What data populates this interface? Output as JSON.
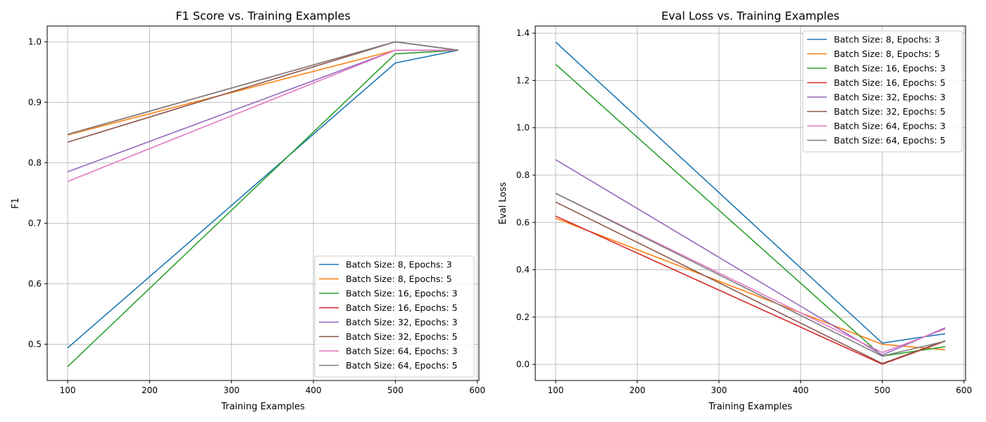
{
  "chart_data": [
    {
      "type": "line",
      "title": "F1 Score vs. Training Examples",
      "xlabel": "Training Examples",
      "ylabel": "F1",
      "xlim": [
        75,
        602
      ],
      "ylim": [
        0.44,
        1.026
      ],
      "xticks": [
        100,
        200,
        300,
        400,
        500,
        600
      ],
      "xtick_labels": [
        "100",
        "200",
        "300",
        "400",
        "500",
        "600"
      ],
      "yticks": [
        0.5,
        0.6,
        0.7,
        0.8,
        0.9,
        1.0
      ],
      "ytick_labels": [
        "0.5",
        "0.6",
        "0.7",
        "0.8",
        "0.9",
        "1.0"
      ],
      "grid": true,
      "legend_position": "lower-right",
      "x": [
        100,
        500,
        577
      ],
      "series": [
        {
          "name": "Batch Size: 8, Epochs: 3",
          "color": "#1f77b4",
          "values": [
            0.494,
            0.965,
            0.986
          ]
        },
        {
          "name": "Batch Size: 8, Epochs: 5",
          "color": "#ff7f0e",
          "values": [
            0.846,
            0.986,
            0.986
          ]
        },
        {
          "name": "Batch Size: 16, Epochs: 3",
          "color": "#2ca02c",
          "values": [
            0.463,
            0.98,
            0.986
          ]
        },
        {
          "name": "Batch Size: 16, Epochs: 5",
          "color": "#d62728",
          "values": [
            0.847,
            1.0,
            0.986
          ]
        },
        {
          "name": "Batch Size: 32, Epochs: 3",
          "color": "#9467bd",
          "values": [
            0.785,
            0.986,
            0.986
          ]
        },
        {
          "name": "Batch Size: 32, Epochs: 5",
          "color": "#8c564b",
          "values": [
            0.834,
            1.0,
            0.986
          ]
        },
        {
          "name": "Batch Size: 64, Epochs: 3",
          "color": "#e377c2",
          "values": [
            0.769,
            0.986,
            0.986
          ]
        },
        {
          "name": "Batch Size: 64, Epochs: 5",
          "color": "#7f7f7f",
          "values": [
            0.847,
            1.0,
            0.986
          ]
        }
      ]
    },
    {
      "type": "line",
      "title": "Eval Loss vs. Training Examples",
      "xlabel": "Training Examples",
      "ylabel": "Eval Loss",
      "xlim": [
        75,
        602
      ],
      "ylim": [
        -0.068,
        1.43
      ],
      "xticks": [
        100,
        200,
        300,
        400,
        500,
        600
      ],
      "xtick_labels": [
        "100",
        "200",
        "300",
        "400",
        "500",
        "600"
      ],
      "yticks": [
        0.0,
        0.2,
        0.4,
        0.6,
        0.8,
        1.0,
        1.2,
        1.4
      ],
      "ytick_labels": [
        "0.0",
        "0.2",
        "0.4",
        "0.6",
        "0.8",
        "1.0",
        "1.2",
        "1.4"
      ],
      "grid": true,
      "legend_position": "upper-right",
      "x": [
        100,
        500,
        577
      ],
      "series": [
        {
          "name": "Batch Size: 8, Epochs: 3",
          "color": "#1f77b4",
          "values": [
            1.362,
            0.09,
            0.13
          ]
        },
        {
          "name": "Batch Size: 8, Epochs: 5",
          "color": "#ff7f0e",
          "values": [
            0.618,
            0.085,
            0.062
          ]
        },
        {
          "name": "Batch Size: 16, Epochs: 3",
          "color": "#2ca02c",
          "values": [
            1.268,
            0.035,
            0.075
          ]
        },
        {
          "name": "Batch Size: 16, Epochs: 5",
          "color": "#d62728",
          "values": [
            0.627,
            0.001,
            0.098
          ]
        },
        {
          "name": "Batch Size: 32, Epochs: 3",
          "color": "#9467bd",
          "values": [
            0.865,
            0.04,
            0.155
          ]
        },
        {
          "name": "Batch Size: 32, Epochs: 5",
          "color": "#8c564b",
          "values": [
            0.686,
            0.004,
            0.1
          ]
        },
        {
          "name": "Batch Size: 64, Epochs: 3",
          "color": "#e377c2",
          "values": [
            0.723,
            0.05,
            0.15
          ]
        },
        {
          "name": "Batch Size: 64, Epochs: 5",
          "color": "#7f7f7f",
          "values": [
            0.723,
            0.035,
            0.098
          ]
        }
      ]
    }
  ]
}
